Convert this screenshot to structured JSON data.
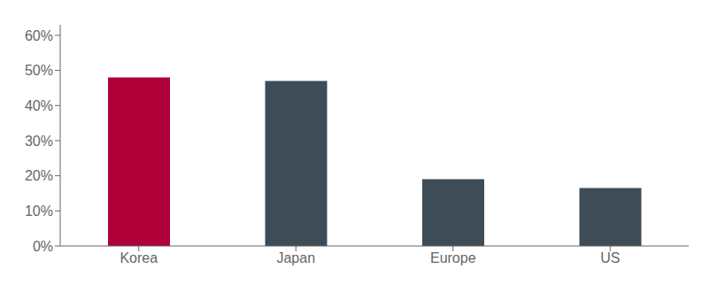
{
  "chart_data": {
    "type": "bar",
    "categories": [
      "Korea",
      "Japan",
      "Europe",
      "US"
    ],
    "values": [
      0.48,
      0.47,
      0.19,
      0.165
    ],
    "colors": [
      "#b0003a",
      "#3d4c57",
      "#3d4c57",
      "#3d4c57"
    ],
    "ylim": [
      0,
      0.63
    ],
    "yticks": [
      {
        "value": 0.0,
        "label": "0%"
      },
      {
        "value": 0.1,
        "label": "10%"
      },
      {
        "value": 0.2,
        "label": "20%"
      },
      {
        "value": 0.3,
        "label": "30%"
      },
      {
        "value": 0.4,
        "label": "40%"
      },
      {
        "value": 0.5,
        "label": "50%"
      },
      {
        "value": 0.6,
        "label": "60%"
      }
    ],
    "grid": false
  }
}
